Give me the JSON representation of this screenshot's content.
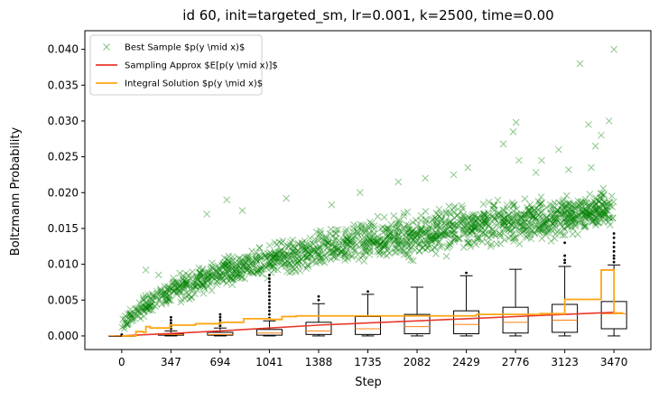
{
  "chart_data": {
    "type": "scatter",
    "title": "id 60, init=targeted_sm, lr=0.001, k=2500, time=0.00",
    "xlabel": "Step",
    "ylabel": "Boltzmann Probability",
    "xlim": [
      -260,
      3730
    ],
    "ylim": [
      -0.0019,
      0.0426
    ],
    "x_ticks": [
      0,
      347,
      694,
      1041,
      1388,
      1735,
      2082,
      2429,
      2776,
      3123,
      3470
    ],
    "y_ticks": [
      0.0,
      0.005,
      0.01,
      0.015,
      0.02,
      0.025,
      0.03,
      0.035,
      0.04
    ],
    "y_tick_labels": [
      "0.000",
      "0.005",
      "0.010",
      "0.015",
      "0.020",
      "0.025",
      "0.030",
      "0.035",
      "0.040"
    ],
    "grid": false,
    "legend": {
      "position": "top-left",
      "entries": [
        {
          "label": "Best Sample $p(y \\mid x)$",
          "color": "#008000",
          "marker": "x"
        },
        {
          "label": "Sampling Approx $E[p(y \\mid x)]$",
          "color": "#e8382c",
          "marker": "line"
        },
        {
          "label": "Integral Solution $p(y \\mid x)$",
          "color": "#ffa514",
          "marker": "line"
        }
      ]
    },
    "series": [
      {
        "name": "Best Sample $p(y \\mid x)$",
        "kind": "scatter",
        "color": "#008000",
        "envelope": {
          "x": [
            0,
            100,
            347,
            694,
            1041,
            1388,
            1735,
            2082,
            2429,
            2776,
            3123,
            3470
          ],
          "low": [
            0.0001,
            0.0015,
            0.0035,
            0.006,
            0.0075,
            0.0085,
            0.0095,
            0.01,
            0.011,
            0.012,
            0.013,
            0.014
          ],
          "high": [
            0.003,
            0.0055,
            0.009,
            0.0115,
            0.0135,
            0.0155,
            0.017,
            0.018,
            0.0195,
            0.02,
            0.0205,
            0.0215
          ]
        },
        "outliers": [
          {
            "x": 3470,
            "y": 0.04
          },
          {
            "x": 3230,
            "y": 0.038
          },
          {
            "x": 2780,
            "y": 0.0298
          },
          {
            "x": 2760,
            "y": 0.0285
          },
          {
            "x": 3290,
            "y": 0.0295
          },
          {
            "x": 3435,
            "y": 0.03
          },
          {
            "x": 3340,
            "y": 0.0265
          },
          {
            "x": 3380,
            "y": 0.028
          },
          {
            "x": 2690,
            "y": 0.0268
          },
          {
            "x": 3080,
            "y": 0.026
          },
          {
            "x": 3310,
            "y": 0.0235
          },
          {
            "x": 2440,
            "y": 0.0235
          },
          {
            "x": 2800,
            "y": 0.0245
          },
          {
            "x": 1680,
            "y": 0.02
          },
          {
            "x": 1950,
            "y": 0.0215
          },
          {
            "x": 2140,
            "y": 0.022
          },
          {
            "x": 2340,
            "y": 0.0225
          },
          {
            "x": 2960,
            "y": 0.0245
          },
          {
            "x": 3150,
            "y": 0.0232
          },
          {
            "x": 2920,
            "y": 0.0228
          },
          {
            "x": 1160,
            "y": 0.0192
          },
          {
            "x": 740,
            "y": 0.019
          },
          {
            "x": 600,
            "y": 0.017
          },
          {
            "x": 850,
            "y": 0.0175
          },
          {
            "x": 1480,
            "y": 0.0183
          },
          {
            "x": 170,
            "y": 0.0092
          },
          {
            "x": 260,
            "y": 0.0085
          }
        ]
      },
      {
        "name": "Sampling Approx $E[p(y \\mid x)]$",
        "kind": "line",
        "color": "#e8382c",
        "x": [
          0,
          100,
          200,
          400,
          694,
          1041,
          1388,
          1735,
          2082,
          2429,
          2776,
          3123,
          3470
        ],
        "y": [
          0.0,
          0.0001,
          0.0002,
          0.0004,
          0.0007,
          0.0011,
          0.0015,
          0.0018,
          0.0021,
          0.0024,
          0.0027,
          0.003,
          0.0033
        ]
      },
      {
        "name": "Integral Solution $p(y \\mid x)$",
        "kind": "step",
        "color": "#ffa514",
        "x": [
          0,
          90,
          100,
          150,
          170,
          200,
          340,
          520,
          700,
          860,
          1045,
          1130,
          1230,
          1480,
          2100,
          2500,
          2950,
          3123,
          3380,
          3470,
          3530
        ],
        "y": [
          0.0,
          0.0,
          0.0006,
          0.0005,
          0.0013,
          0.0011,
          0.0015,
          0.0017,
          0.0019,
          0.0024,
          0.0023,
          0.0027,
          0.0028,
          0.0028,
          0.0028,
          0.003,
          0.0031,
          0.0051,
          0.0092,
          0.0032,
          0.0031
        ]
      },
      {
        "name": "",
        "kind": "boxplot",
        "color": "#000000",
        "boxes": [
          {
            "x": 0,
            "whislo": 0.0,
            "q1": 0.0,
            "med": 0.0,
            "q3": 0.0,
            "whishi": 0.0,
            "fliers": [
              0.0001,
              0.0002
            ]
          },
          {
            "x": 347,
            "whislo": 0.0,
            "q1": 0.0001,
            "med": 0.0002,
            "q3": 0.0003,
            "whishi": 0.0007,
            "fliers": [
              0.001,
              0.0014,
              0.0018,
              0.0022,
              0.0026
            ]
          },
          {
            "x": 694,
            "whislo": 0.0,
            "q1": 0.0001,
            "med": 0.0002,
            "q3": 0.0005,
            "whishi": 0.0011,
            "fliers": [
              0.0014,
              0.0018,
              0.0022,
              0.0026,
              0.003
            ]
          },
          {
            "x": 1041,
            "whislo": 0.0,
            "q1": 0.0001,
            "med": 0.0004,
            "q3": 0.0009,
            "whishi": 0.0021,
            "fliers": [
              0.0025,
              0.003,
              0.0035,
              0.004,
              0.0045,
              0.005,
              0.0055,
              0.006,
              0.0065,
              0.007,
              0.0075,
              0.008,
              0.0085
            ]
          },
          {
            "x": 1388,
            "whislo": 0.0,
            "q1": 0.0002,
            "med": 0.0007,
            "q3": 0.0019,
            "whishi": 0.0045,
            "fliers": [
              0.005,
              0.0055
            ]
          },
          {
            "x": 1735,
            "whislo": 0.0,
            "q1": 0.0002,
            "med": 0.001,
            "q3": 0.0027,
            "whishi": 0.0058,
            "fliers": [
              0.0062
            ]
          },
          {
            "x": 2082,
            "whislo": 0.0,
            "q1": 0.0003,
            "med": 0.0013,
            "q3": 0.003,
            "whishi": 0.0068,
            "fliers": []
          },
          {
            "x": 2429,
            "whislo": 0.0,
            "q1": 0.0003,
            "med": 0.0016,
            "q3": 0.0035,
            "whishi": 0.0084,
            "fliers": [
              0.0088
            ]
          },
          {
            "x": 2776,
            "whislo": 0.0,
            "q1": 0.0004,
            "med": 0.0019,
            "q3": 0.004,
            "whishi": 0.0093,
            "fliers": []
          },
          {
            "x": 3123,
            "whislo": 0.0,
            "q1": 0.0005,
            "med": 0.0022,
            "q3": 0.0044,
            "whishi": 0.0097,
            "fliers": [
              0.0102,
              0.0106,
              0.0112,
              0.013
            ]
          },
          {
            "x": 3470,
            "whislo": 0.0,
            "q1": 0.001,
            "med": 0.0031,
            "q3": 0.0048,
            "whishi": 0.0099,
            "fliers": [
              0.0103,
              0.0108,
              0.0112,
              0.0118,
              0.0124,
              0.013,
              0.0137,
              0.0143
            ]
          }
        ]
      }
    ]
  }
}
